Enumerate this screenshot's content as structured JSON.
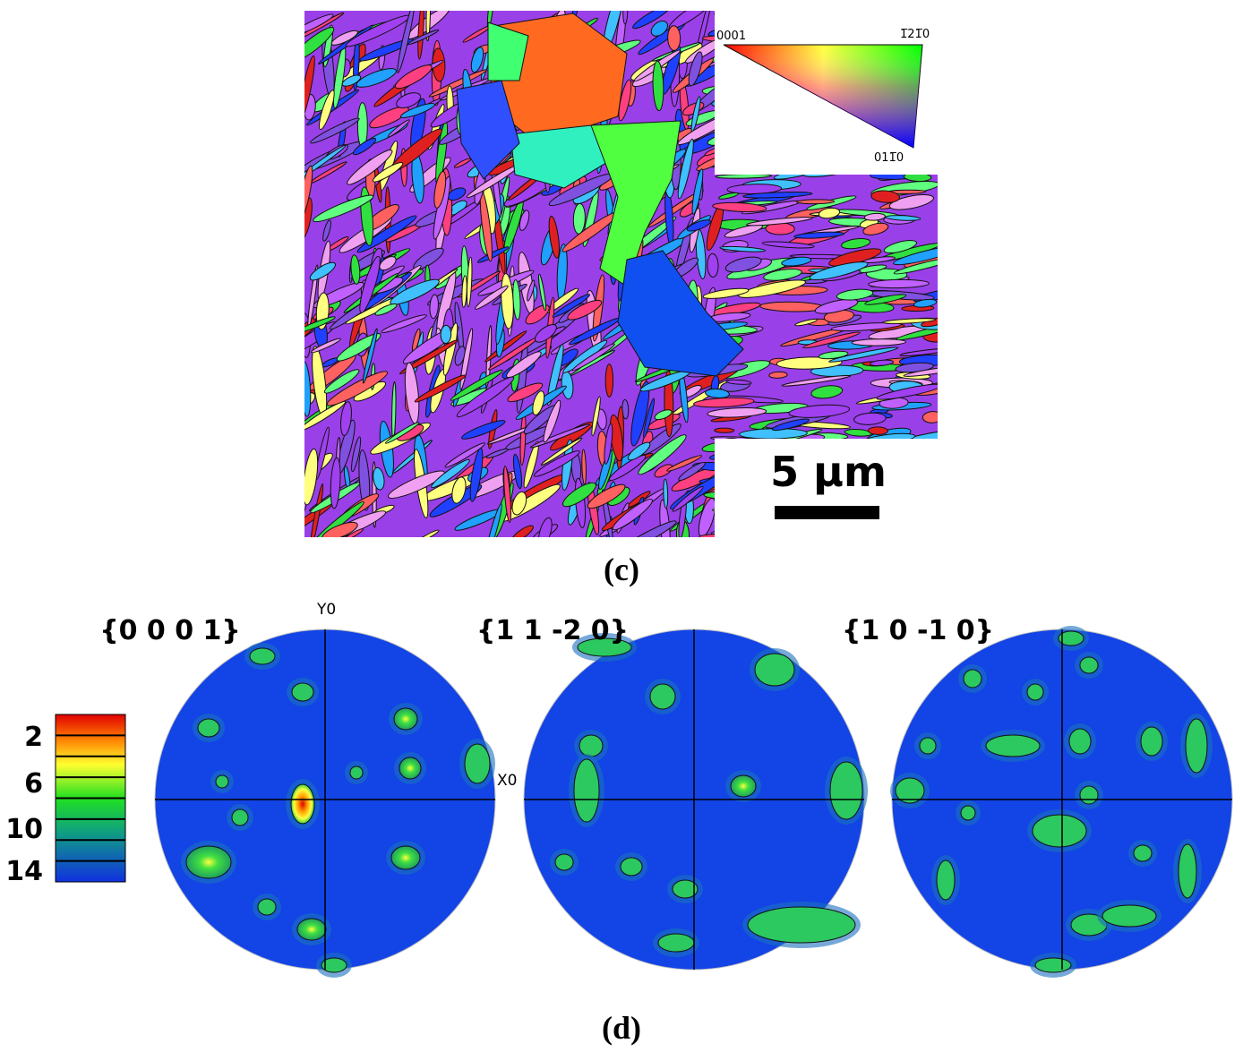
{
  "figure_c": {
    "ipf_labels": [
      "0001",
      "1̅21̅0",
      "011̅0"
    ],
    "scale_bar": "5 µm",
    "caption": "(c)"
  },
  "figure_d": {
    "pole_figures": [
      {
        "title": "{0 0 0 1}"
      },
      {
        "title": "{1 1 -2 0}"
      },
      {
        "title": "{1 0 -1 0}"
      }
    ],
    "axis_labels": {
      "y": "Y0",
      "x": "X0"
    },
    "colorbar_ticks": [
      2,
      6,
      10,
      14
    ],
    "caption": "(d)"
  }
}
